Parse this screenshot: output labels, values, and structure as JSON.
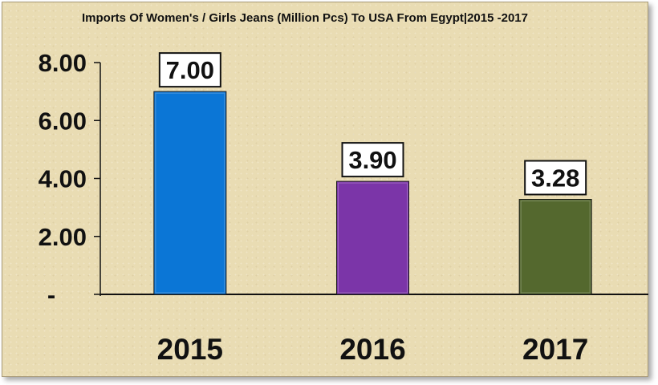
{
  "chart_data": {
    "type": "bar",
    "title": "Imports Of Women's / Girls Jeans (Million Pcs) To USA From Egypt|2015 -2017",
    "categories": [
      "2015",
      "2016",
      "2017"
    ],
    "values": [
      7.0,
      3.9,
      3.28
    ],
    "value_labels": [
      "7.00",
      "3.90",
      "3.28"
    ],
    "bar_colors": [
      "#0b76d6",
      "#7b35a8",
      "#54682e"
    ],
    "yticks": [
      {
        "value": 0,
        "label": "-"
      },
      {
        "value": 2,
        "label": "2.00"
      },
      {
        "value": 4,
        "label": "4.00"
      },
      {
        "value": 6,
        "label": "6.00"
      },
      {
        "value": 8,
        "label": "8.00"
      }
    ],
    "ylim": [
      0,
      8
    ],
    "grid": false,
    "legend": "none",
    "background_color": "#e9dcb3"
  }
}
